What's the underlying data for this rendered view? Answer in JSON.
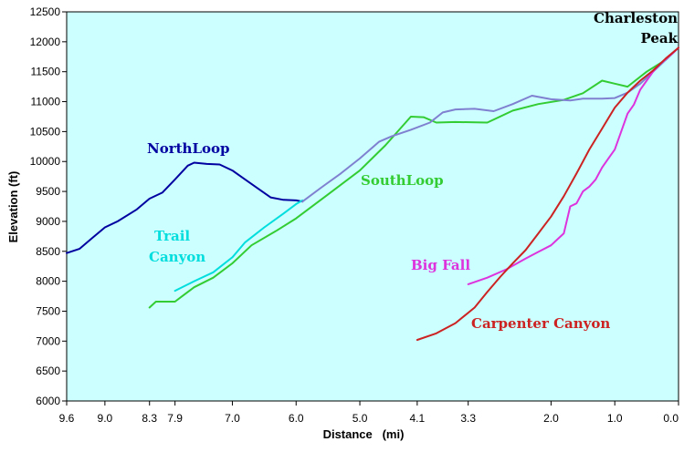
{
  "chart_data": {
    "type": "line",
    "title": "",
    "xlabel": "Distance   (mi)",
    "ylabel": "Elevation (ft)",
    "x_reversed": true,
    "xlim": [
      9.6,
      0.0
    ],
    "ylim": [
      6000,
      12500
    ],
    "x_ticks": [
      9.6,
      9.0,
      8.3,
      7.9,
      7.0,
      6.0,
      5.0,
      4.1,
      3.3,
      2.0,
      1.0,
      0.0
    ],
    "x_tick_labels": [
      "9.6",
      "9.0",
      "8.3",
      "7.9",
      "7.0",
      "6.0",
      "5.0",
      "4.1",
      "3.3",
      "2.0",
      "1.0",
      "0.0"
    ],
    "y_ticks": [
      6000,
      6500,
      7000,
      7500,
      8000,
      8500,
      9000,
      9500,
      10000,
      10500,
      11000,
      11500,
      12000,
      12500
    ],
    "y_tick_labels": [
      "6000",
      "6500",
      "7000",
      "7500",
      "8000",
      "8500",
      "9000",
      "9500",
      "10000",
      "10500",
      "11000",
      "11500",
      "12000",
      "12500"
    ],
    "grid": false,
    "plot_background": "#ccffff",
    "series": [
      {
        "name": "SouthLoop",
        "color": "#33cc33",
        "x": [
          8.3,
          8.2,
          7.9,
          7.8,
          7.6,
          7.3,
          7.0,
          6.7,
          6.3,
          6.0,
          5.5,
          5.0,
          4.6,
          4.2,
          4.0,
          3.8,
          3.5,
          3.0,
          2.6,
          2.2,
          1.8,
          1.5,
          1.2,
          1.0,
          0.8,
          0.5,
          0.2,
          0.0
        ],
        "y": [
          7560,
          7660,
          7660,
          7740,
          7900,
          8060,
          8300,
          8600,
          8850,
          9050,
          9450,
          9850,
          10270,
          10750,
          10740,
          10650,
          10660,
          10650,
          10850,
          10960,
          11030,
          11140,
          11350,
          11300,
          11250,
          11500,
          11700,
          11900
        ]
      },
      {
        "name": "NorthLoop",
        "color": "#0000a0",
        "x": [
          9.6,
          9.4,
          9.2,
          9.0,
          8.8,
          8.5,
          8.3,
          8.1,
          7.9,
          7.7,
          7.6,
          7.4,
          7.2,
          7.0,
          6.8,
          6.6,
          6.4,
          6.2,
          6.0,
          5.9
        ],
        "y": [
          8470,
          8540,
          8720,
          8900,
          9000,
          9200,
          9380,
          9480,
          9700,
          9930,
          9980,
          9960,
          9950,
          9850,
          9700,
          9550,
          9400,
          9360,
          9350,
          9330
        ]
      },
      {
        "name": "Trail Canyon",
        "color": "#00dddd",
        "x": [
          7.9,
          7.6,
          7.3,
          7.0,
          6.8,
          6.5,
          6.2,
          6.0,
          5.9
        ],
        "y": [
          7840,
          8000,
          8150,
          8400,
          8650,
          8900,
          9130,
          9290,
          9350
        ]
      },
      {
        "name": "",
        "color": "#8080d0",
        "x": [
          5.9,
          5.6,
          5.3,
          5.0,
          4.7,
          4.5,
          4.2,
          3.9,
          3.7,
          3.5,
          3.2,
          2.9,
          2.6,
          2.3,
          2.0,
          1.7,
          1.5,
          1.2,
          1.0,
          0.8,
          0.6,
          0.3,
          0.0
        ],
        "y": [
          9330,
          9570,
          9800,
          10050,
          10330,
          10420,
          10530,
          10650,
          10820,
          10870,
          10880,
          10840,
          10960,
          11100,
          11040,
          11020,
          11050,
          11050,
          11060,
          11150,
          11300,
          11600,
          11900
        ]
      },
      {
        "name": "Big Fall",
        "color": "#dd33dd",
        "x": [
          3.3,
          3.0,
          2.7,
          2.4,
          2.2,
          2.0,
          1.9,
          1.8,
          1.7,
          1.6,
          1.5,
          1.4,
          1.3,
          1.2,
          1.1,
          1.0,
          0.9,
          0.8,
          0.7,
          0.6,
          0.5,
          0.4,
          0.3,
          0.1,
          0.0
        ],
        "y": [
          7950,
          8060,
          8200,
          8380,
          8490,
          8600,
          8700,
          8800,
          9250,
          9300,
          9500,
          9580,
          9700,
          9900,
          10050,
          10200,
          10500,
          10800,
          10950,
          11200,
          11350,
          11500,
          11620,
          11800,
          11900
        ]
      },
      {
        "name": "Carpenter Canyon",
        "color": "#cc2222",
        "x": [
          4.1,
          3.8,
          3.5,
          3.2,
          3.0,
          2.8,
          2.6,
          2.4,
          2.2,
          2.0,
          1.8,
          1.6,
          1.4,
          1.2,
          1.0,
          0.8,
          0.6,
          0.4,
          0.2,
          0.0
        ],
        "y": [
          7020,
          7130,
          7300,
          7560,
          7820,
          8070,
          8300,
          8520,
          8800,
          9080,
          9420,
          9800,
          10200,
          10550,
          10900,
          11150,
          11350,
          11520,
          11720,
          11900
        ]
      }
    ],
    "labels": [
      {
        "text": "NorthLoop",
        "color": "#0000a0"
      },
      {
        "text": "SouthLoop",
        "color": "#33cc33"
      },
      {
        "text": "Trail",
        "color": "#00dddd"
      },
      {
        "text": "Canyon",
        "color": "#00dddd"
      },
      {
        "text": "Big Fall",
        "color": "#dd33dd"
      },
      {
        "text": "Carpenter Canyon",
        "color": "#cc2222"
      },
      {
        "text": "Charleston",
        "color": "#000000"
      },
      {
        "text": "Peak",
        "color": "#000000"
      }
    ]
  }
}
